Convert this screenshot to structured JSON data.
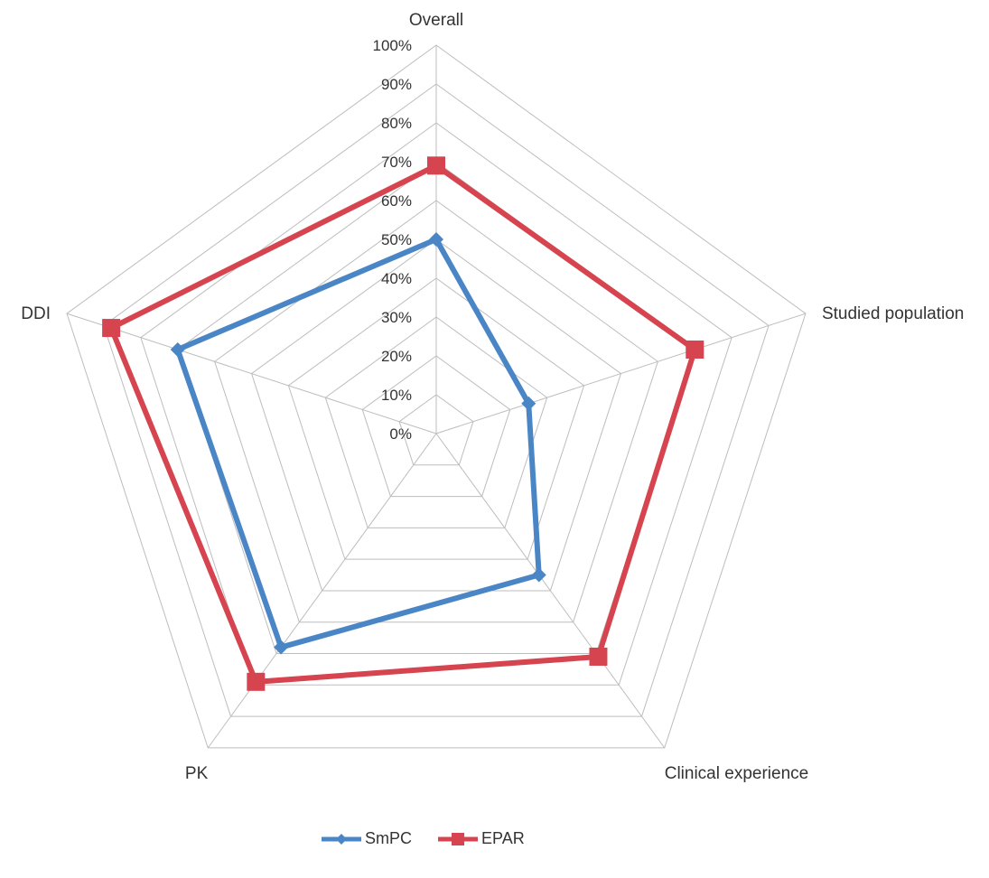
{
  "chart_data": {
    "type": "radar",
    "title": "",
    "axes": [
      "Overall",
      "Studied population",
      "Clinical experience",
      "PK",
      "DDI"
    ],
    "tick_labels": [
      "0%",
      "10%",
      "20%",
      "30%",
      "40%",
      "50%",
      "60%",
      "70%",
      "80%",
      "90%",
      "100%"
    ],
    "range": [
      0,
      100
    ],
    "grid": true,
    "legend_position": "bottom",
    "series": [
      {
        "name": "SmPC",
        "color": "#4a86c5",
        "marker": "diamond",
        "values": [
          50,
          25,
          45,
          68,
          70
        ]
      },
      {
        "name": "EPAR",
        "color": "#d6444f",
        "marker": "square",
        "values": [
          69,
          70,
          71,
          79,
          88
        ]
      }
    ]
  }
}
